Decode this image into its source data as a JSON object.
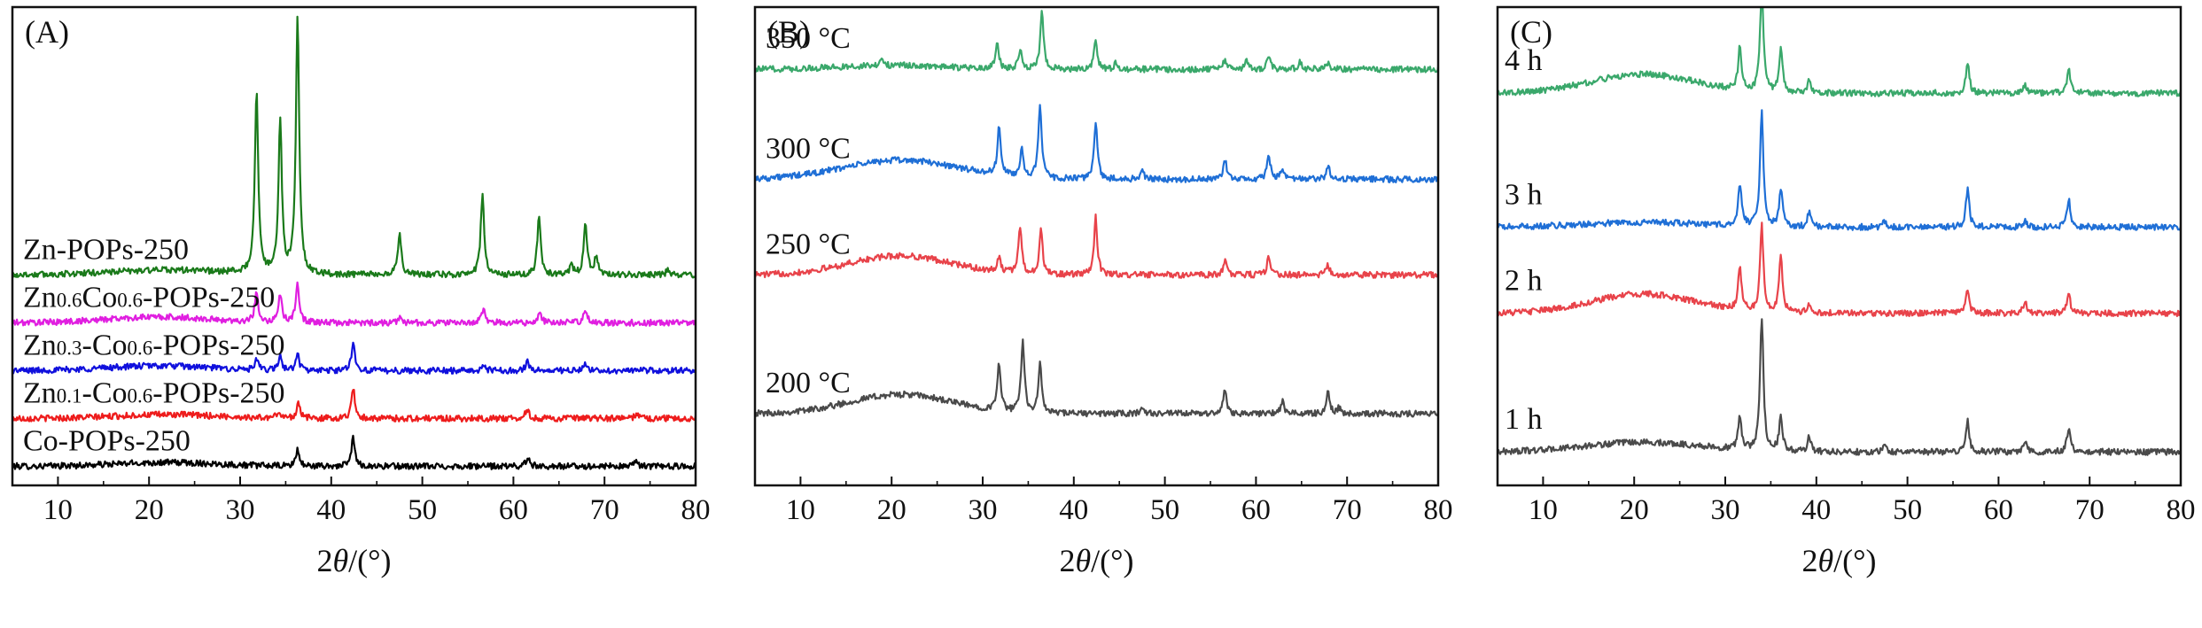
{
  "chart_data": [
    {
      "type": "line",
      "panel_label": "(A)",
      "xlabel_symbol": "2θ",
      "xlabel_unit": "/(°)",
      "xlim": [
        5,
        80
      ],
      "xticks": [
        10,
        20,
        30,
        40,
        50,
        60,
        70,
        80
      ],
      "y_axis": "none",
      "series": [
        {
          "name": "Co-POPs-250",
          "name_parts": [
            {
              "t": "Co-POPs-250"
            }
          ],
          "color": "#000000",
          "baseline": 0.04,
          "bump": {
            "center": 22,
            "width": 8,
            "height": 0.008
          },
          "peaks": [
            [
              36.3,
              0.035
            ],
            [
              42.4,
              0.06
            ],
            [
              61.6,
              0.02
            ],
            [
              73.5,
              0.01
            ]
          ]
        },
        {
          "name": "Zn0.1-Co0.6-POPs-250",
          "name_parts": [
            {
              "t": "Zn"
            },
            {
              "t": "0.1",
              "sub": true
            },
            {
              "t": "-Co"
            },
            {
              "t": "0.6",
              "sub": true
            },
            {
              "t": "-POPs-250"
            }
          ],
          "color": "#ee1c1c",
          "baseline": 0.14,
          "bump": {
            "center": 22,
            "width": 8,
            "height": 0.008
          },
          "peaks": [
            [
              34.2,
              0.015
            ],
            [
              36.4,
              0.035
            ],
            [
              42.4,
              0.065
            ],
            [
              61.5,
              0.02
            ],
            [
              73.6,
              0.012
            ]
          ]
        },
        {
          "name": "Zn0.3-Co0.6-POPs-250",
          "name_parts": [
            {
              "t": "Zn"
            },
            {
              "t": "0.3",
              "sub": true
            },
            {
              "t": "-Co"
            },
            {
              "t": "0.6",
              "sub": true
            },
            {
              "t": "-POPs-250"
            }
          ],
          "color": "#1010dd",
          "baseline": 0.24,
          "bump": {
            "center": 21,
            "width": 8,
            "height": 0.01
          },
          "peaks": [
            [
              31.8,
              0.02
            ],
            [
              34.4,
              0.03
            ],
            [
              36.3,
              0.035
            ],
            [
              42.4,
              0.06
            ],
            [
              56.7,
              0.012
            ],
            [
              61.5,
              0.02
            ],
            [
              67.8,
              0.012
            ]
          ]
        },
        {
          "name": "Zn0.6Co0.6-POPs-250",
          "name_parts": [
            {
              "t": "Zn"
            },
            {
              "t": "0.6",
              "sub": true
            },
            {
              "t": "Co"
            },
            {
              "t": "0.6",
              "sub": true
            },
            {
              "t": "-POPs-250"
            }
          ],
          "color": "#e01ee0",
          "baseline": 0.34,
          "bump": {
            "center": 21,
            "width": 8,
            "height": 0.012
          },
          "peaks": [
            [
              31.8,
              0.065
            ],
            [
              34.4,
              0.06
            ],
            [
              36.3,
              0.085
            ],
            [
              47.5,
              0.012
            ],
            [
              56.7,
              0.03
            ],
            [
              62.9,
              0.02
            ],
            [
              67.9,
              0.03
            ]
          ]
        },
        {
          "name": "Zn-POPs-250",
          "name_parts": [
            {
              "t": "Zn-POPs-250"
            }
          ],
          "color": "#1a7a1a",
          "baseline": 0.44,
          "bump": {
            "center": 22,
            "width": 9,
            "height": 0.01
          },
          "peaks": [
            [
              31.8,
              0.38
            ],
            [
              34.4,
              0.32
            ],
            [
              36.3,
              0.54
            ],
            [
              47.5,
              0.09
            ],
            [
              56.6,
              0.17
            ],
            [
              62.8,
              0.12
            ],
            [
              66.4,
              0.02
            ],
            [
              67.9,
              0.11
            ],
            [
              69.1,
              0.04
            ],
            [
              77.0,
              0.012
            ]
          ]
        }
      ]
    },
    {
      "type": "line",
      "panel_label": "(B)",
      "xlabel_symbol": "2θ",
      "xlabel_unit": "/(°)",
      "xlim": [
        5,
        80
      ],
      "xticks": [
        10,
        20,
        30,
        40,
        50,
        60,
        70,
        80
      ],
      "y_axis": "none",
      "series": [
        {
          "name": "200 °C",
          "name_parts": [
            {
              "t": "200 °C"
            }
          ],
          "color": "#4a4a4a",
          "baseline": 0.15,
          "bump": {
            "center": 21,
            "width": 8,
            "height": 0.04
          },
          "peaks": [
            [
              31.8,
              0.1
            ],
            [
              34.4,
              0.15
            ],
            [
              36.3,
              0.1
            ],
            [
              47.5,
              0.015
            ],
            [
              56.6,
              0.05
            ],
            [
              62.9,
              0.025
            ],
            [
              67.9,
              0.045
            ],
            [
              69.1,
              0.012
            ]
          ]
        },
        {
          "name": "250 °C",
          "name_parts": [
            {
              "t": "250 °C"
            }
          ],
          "color": "#e8434a",
          "baseline": 0.44,
          "bump": {
            "center": 21,
            "width": 8,
            "height": 0.04
          },
          "peaks": [
            [
              31.8,
              0.03
            ],
            [
              34.1,
              0.1
            ],
            [
              36.4,
              0.09
            ],
            [
              42.4,
              0.12
            ],
            [
              56.6,
              0.03
            ],
            [
              61.4,
              0.04
            ],
            [
              67.9,
              0.02
            ]
          ]
        },
        {
          "name": "300 °C",
          "name_parts": [
            {
              "t": "300 °C"
            }
          ],
          "color": "#1f6fd6",
          "baseline": 0.64,
          "bump": {
            "center": 21,
            "width": 9,
            "height": 0.04
          },
          "peaks": [
            [
              31.8,
              0.1
            ],
            [
              34.3,
              0.06
            ],
            [
              36.3,
              0.15
            ],
            [
              42.4,
              0.12
            ],
            [
              47.5,
              0.02
            ],
            [
              56.6,
              0.04
            ],
            [
              61.4,
              0.05
            ],
            [
              62.9,
              0.02
            ],
            [
              67.9,
              0.03
            ]
          ]
        },
        {
          "name": "350 °C",
          "name_parts": [
            {
              "t": "350 °C"
            }
          ],
          "color": "#3aa86b",
          "baseline": 0.87,
          "bump": {
            "center": 20,
            "width": 8,
            "height": 0.008
          },
          "peaks": [
            [
              19.0,
              0.012
            ],
            [
              31.6,
              0.05
            ],
            [
              34.1,
              0.04
            ],
            [
              36.5,
              0.12
            ],
            [
              42.4,
              0.06
            ],
            [
              44.6,
              0.012
            ],
            [
              56.6,
              0.02
            ],
            [
              59.0,
              0.02
            ],
            [
              61.4,
              0.025
            ],
            [
              64.8,
              0.015
            ],
            [
              67.9,
              0.012
            ]
          ]
        }
      ]
    },
    {
      "type": "line",
      "panel_label": "(C)",
      "xlabel_symbol": "2θ",
      "xlabel_unit": "/(°)",
      "xlim": [
        5,
        80
      ],
      "xticks": [
        10,
        20,
        30,
        40,
        50,
        60,
        70,
        80
      ],
      "y_axis": "none",
      "series": [
        {
          "name": "1 h",
          "name_parts": [
            {
              "t": "1 h"
            }
          ],
          "color": "#4a4a4a",
          "baseline": 0.07,
          "bump": {
            "center": 21,
            "width": 9,
            "height": 0.02
          },
          "peaks": [
            [
              31.6,
              0.07
            ],
            [
              34.0,
              0.28
            ],
            [
              36.1,
              0.07
            ],
            [
              39.2,
              0.03
            ],
            [
              47.5,
              0.012
            ],
            [
              56.6,
              0.065
            ],
            [
              62.9,
              0.025
            ],
            [
              67.7,
              0.05
            ]
          ]
        },
        {
          "name": "2 h",
          "name_parts": [
            {
              "t": "2 h"
            }
          ],
          "color": "#e8434a",
          "baseline": 0.36,
          "bump": {
            "center": 21,
            "width": 8,
            "height": 0.04
          },
          "peaks": [
            [
              31.6,
              0.09
            ],
            [
              34.0,
              0.18
            ],
            [
              36.1,
              0.12
            ],
            [
              39.2,
              0.02
            ],
            [
              56.6,
              0.05
            ],
            [
              62.9,
              0.025
            ],
            [
              67.7,
              0.04
            ]
          ]
        },
        {
          "name": "3 h",
          "name_parts": [
            {
              "t": "3 h"
            }
          ],
          "color": "#1f6fd6",
          "baseline": 0.54,
          "bump": {
            "center": 21,
            "width": 9,
            "height": 0.01
          },
          "peaks": [
            [
              31.6,
              0.09
            ],
            [
              34.0,
              0.24
            ],
            [
              36.1,
              0.08
            ],
            [
              39.2,
              0.03
            ],
            [
              47.5,
              0.012
            ],
            [
              56.6,
              0.08
            ],
            [
              62.9,
              0.015
            ],
            [
              67.7,
              0.06
            ]
          ]
        },
        {
          "name": "4 h",
          "name_parts": [
            {
              "t": "4 h"
            }
          ],
          "color": "#3aa86b",
          "baseline": 0.82,
          "bump": {
            "center": 21,
            "width": 8,
            "height": 0.04
          },
          "peaks": [
            [
              31.6,
              0.09
            ],
            [
              34.0,
              0.22
            ],
            [
              36.1,
              0.09
            ],
            [
              39.2,
              0.025
            ],
            [
              56.6,
              0.065
            ],
            [
              62.9,
              0.015
            ],
            [
              67.7,
              0.05
            ]
          ]
        }
      ]
    }
  ]
}
